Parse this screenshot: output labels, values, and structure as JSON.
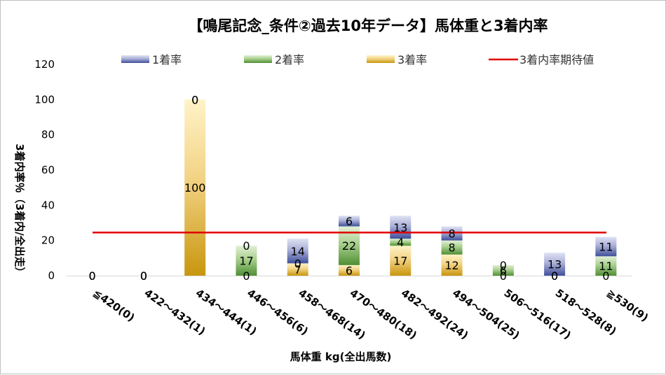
{
  "chart_data": {
    "type": "bar",
    "stacked": true,
    "title": "【鳴尾記念_条件②過去10年データ】馬体重と3着内率",
    "xlabel": "馬体重 kg(全出馬数)",
    "ylabel": "3着内率％（3着内/全出走）",
    "ylim": [
      0,
      120
    ],
    "yticks": [
      "0",
      "20",
      "40",
      "60",
      "80",
      "100",
      "120"
    ],
    "categories": [
      "≦420(0)",
      "422～432(1)",
      "434～444(1)",
      "446～456(6)",
      "458～468(14)",
      "470～480(18)",
      "482～492(24)",
      "494～504(25)",
      "506～516(17)",
      "518～528(8)",
      "≧530(9)"
    ],
    "series": [
      {
        "name": "3着率",
        "values": [
          0,
          0,
          100,
          0,
          7,
          6,
          17,
          12,
          0,
          0,
          0
        ]
      },
      {
        "name": "2着率",
        "values": [
          0,
          0,
          0,
          17,
          0,
          22,
          4,
          8,
          6,
          0,
          11
        ]
      },
      {
        "name": "1着率",
        "values": [
          0,
          0,
          0,
          0,
          14,
          6,
          13,
          8,
          0,
          13,
          11
        ]
      }
    ],
    "reference_line": {
      "name": "3着内率期待値",
      "value": 24.5,
      "color": "#e00000"
    },
    "legend_position": "top",
    "grid": false,
    "colors": {
      "1着率": "#3f4f9a",
      "2着率": "#5e9d42",
      "3着率": "#c8960e"
    }
  }
}
